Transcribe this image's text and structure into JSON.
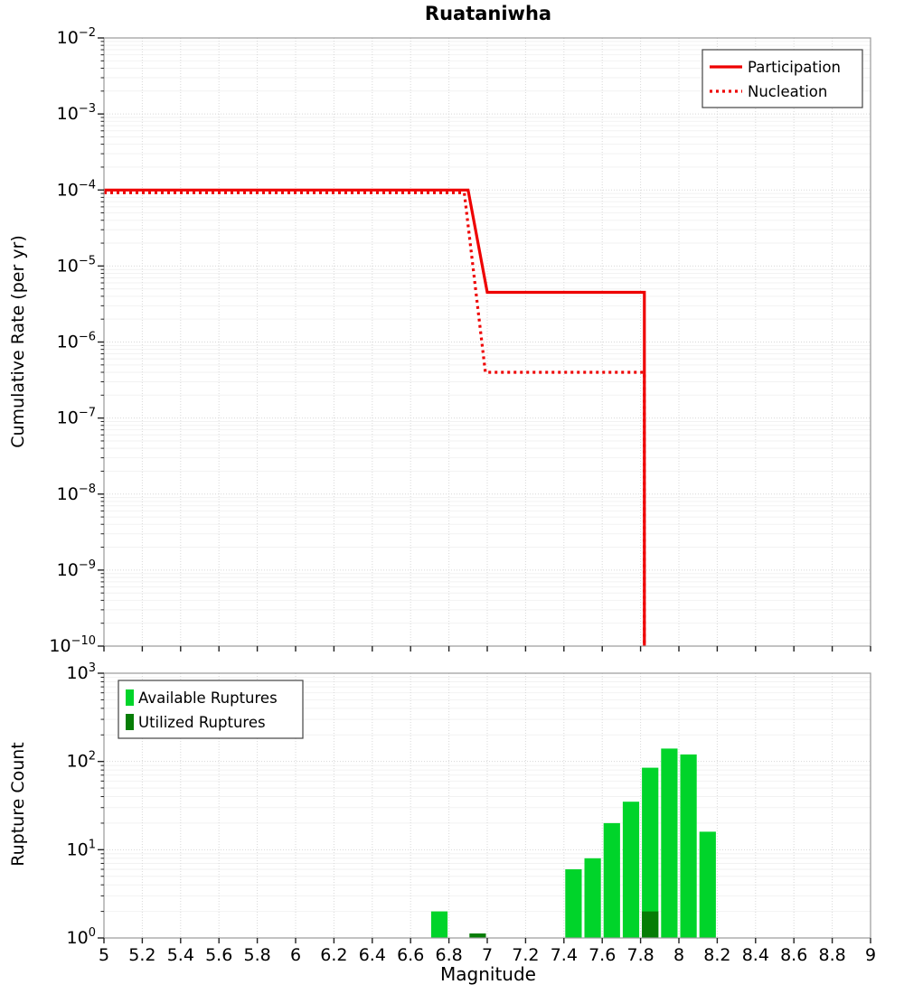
{
  "title": "Ruataniwha",
  "chart_data": [
    {
      "type": "line",
      "title": "Ruataniwha",
      "xlabel": "Magnitude",
      "ylabel": "Cumulative Rate (per yr)",
      "xlim": [
        5,
        9
      ],
      "x_tick_step": 0.2,
      "x_tick_labels": [
        "5",
        "5.2",
        "5.4",
        "5.6",
        "5.8",
        "6",
        "6.2",
        "6.4",
        "6.6",
        "6.8",
        "7",
        "7.2",
        "7.4",
        "7.6",
        "7.8",
        "8",
        "8.2",
        "8.4",
        "8.6",
        "8.8",
        "9"
      ],
      "ylim_exp": [
        -10,
        -2
      ],
      "y_scale": "log",
      "grid": true,
      "legend_position": "top-right",
      "series": [
        {
          "name": "Participation",
          "style": "solid",
          "color": "#ee0000",
          "points": [
            [
              5,
              0.0001
            ],
            [
              6.9,
              0.0001
            ],
            [
              7.0,
              4.5e-06
            ],
            [
              7.82,
              4.5e-06
            ],
            [
              7.82,
              1e-10
            ]
          ]
        },
        {
          "name": "Nucleation",
          "style": "dotted",
          "color": "#ee0000",
          "points": [
            [
              5,
              9.2e-05
            ],
            [
              6.88,
              9.2e-05
            ],
            [
              6.99,
              4e-07
            ],
            [
              7.82,
              4e-07
            ],
            [
              7.82,
              1e-10
            ]
          ]
        }
      ]
    },
    {
      "type": "bar",
      "xlabel": "Magnitude",
      "ylabel": "Rupture Count",
      "xlim": [
        5,
        9
      ],
      "x_tick_step": 0.2,
      "x_tick_labels": [
        "5",
        "5.2",
        "5.4",
        "5.6",
        "5.8",
        "6",
        "6.2",
        "6.4",
        "6.6",
        "6.8",
        "7",
        "7.2",
        "7.4",
        "7.6",
        "7.8",
        "8",
        "8.2",
        "8.4",
        "8.6",
        "8.8",
        "9"
      ],
      "ylim_exp": [
        0,
        3
      ],
      "y_scale": "log",
      "grid": true,
      "bar_width": 0.1,
      "legend_position": "top-left",
      "series": [
        {
          "name": "Available Ruptures",
          "color": "#00d42a",
          "bars": [
            [
              6.75,
              2
            ],
            [
              7.45,
              6
            ],
            [
              7.55,
              8
            ],
            [
              7.65,
              20
            ],
            [
              7.75,
              35
            ],
            [
              7.85,
              85
            ],
            [
              7.95,
              140
            ],
            [
              8.05,
              120
            ],
            [
              8.15,
              16
            ]
          ]
        },
        {
          "name": "Utilized Ruptures",
          "color": "#067d06",
          "bars": [
            [
              6.95,
              1
            ],
            [
              7.85,
              2
            ]
          ]
        }
      ]
    }
  ]
}
